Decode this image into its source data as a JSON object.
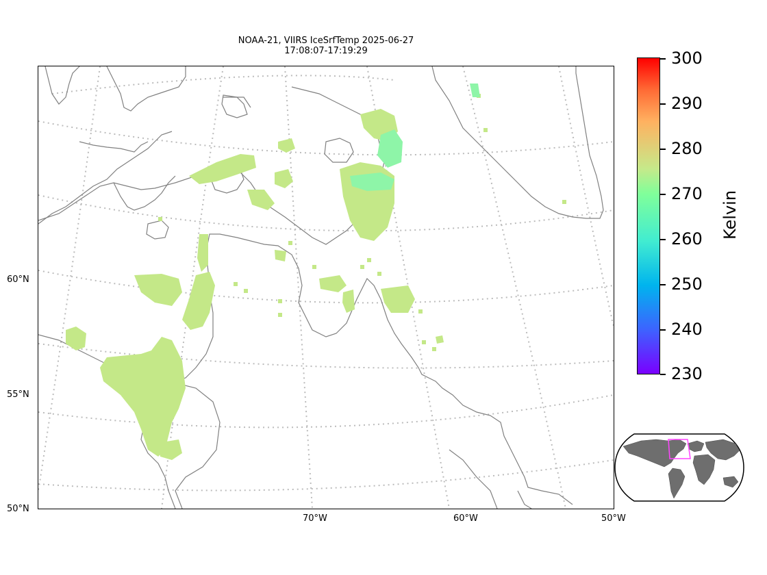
{
  "title": {
    "line1": "NOAA-21, VIIRS IceSrfTemp 2025-06-27",
    "line2": "17:08:07-17:19:29"
  },
  "axes": {
    "lat_labels": [
      "60°N",
      "55°N",
      "50°N"
    ],
    "lon_labels": [
      "70°W",
      "60°W",
      "50°W"
    ]
  },
  "colorbar": {
    "ticks": [
      "300",
      "290",
      "280",
      "270",
      "260",
      "250",
      "240",
      "230"
    ],
    "range": [
      230,
      300
    ],
    "unit": "Kelvin",
    "colormap": "rainbow"
  },
  "colors": {
    "coastline": "#808080",
    "graticule": "#bbbbbb",
    "data_typical": "#c4e888",
    "data_cold": "#8ef5a8",
    "inset_land": "#6e6e6e",
    "inset_box": "#ff44ff"
  },
  "inset": {
    "name": "global-locator-map"
  }
}
